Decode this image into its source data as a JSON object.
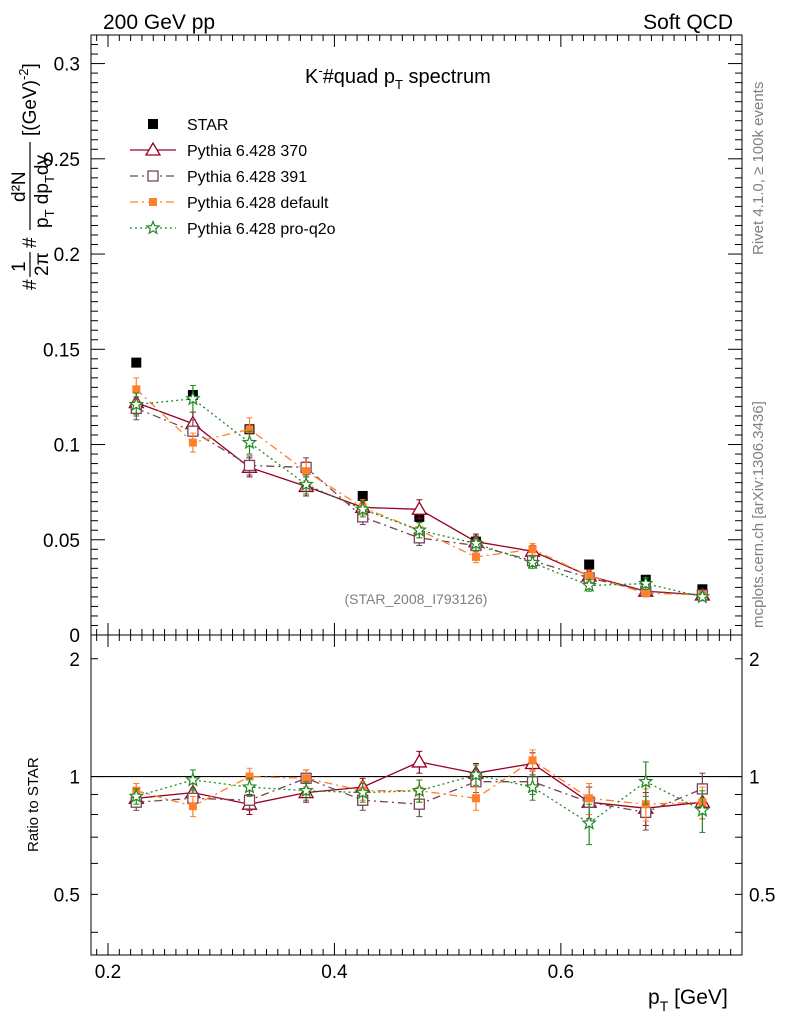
{
  "header": {
    "left": "200 GeV pp",
    "right": "Soft QCD"
  },
  "side": {
    "rivet": "Rivet 4.1.0, ≥ 100k events",
    "mcplots": "mcplots.cern.ch [arXiv:1306.3436]"
  },
  "watermark": "(STAR_2008_I793126)",
  "chart_data": {
    "type": "scatter",
    "title": "K⁻#quad p_T spectrum",
    "title_main": "K",
    "title_sup": "-",
    "title_mid": "#quad p",
    "title_sub": "T",
    "title_tail": " spectrum",
    "xlabel": "p_T [GeV]",
    "xlabel_main": "p",
    "xlabel_sub": "T",
    "xlabel_tail": " [GeV]",
    "ylabel": "#frac{1}{2π} #frac{d²N}{p_T dp_T dy} [(GeV)⁻²]",
    "ylabel_parts": {
      "hash1": "#",
      "one": "1",
      "twopi": "2π",
      "hash2": "#",
      "d2n": "d²N",
      "pt": "p",
      "pt_sub": "T",
      "dp": " dp",
      "dp_sub": "T",
      "dy": "dy",
      "units": "[(GeV)",
      "units_sup": "-2",
      "units_close": "]"
    },
    "ratio_ylabel": "Ratio to STAR",
    "xlim": [
      0.185,
      0.76
    ],
    "ylim": [
      0,
      0.315
    ],
    "ratio_ylim": [
      0.35,
      2.3
    ],
    "x_ticks": [
      "0.2",
      "0.4",
      "0.6"
    ],
    "y_ticks": [
      "0",
      "0.05",
      "0.1",
      "0.15",
      "0.2",
      "0.25",
      "0.3"
    ],
    "ratio_ticks": [
      "0.5",
      "1",
      "2"
    ],
    "x": [
      0.225,
      0.275,
      0.325,
      0.375,
      0.425,
      0.475,
      0.525,
      0.575,
      0.625,
      0.675,
      0.725
    ],
    "series": [
      {
        "name": "STAR",
        "color": "#000000",
        "marker": "square-filled",
        "values": [
          0.143,
          0.126,
          0.108,
          0.088,
          0.073,
          0.062,
          0.049,
          0.041,
          0.037,
          0.029,
          0.024
        ],
        "errors": [
          0.002,
          0.002,
          0.002,
          0.001,
          0.001,
          0.001,
          0.001,
          0.001,
          0.001,
          0.001,
          0.001
        ],
        "ratio": [
          1,
          1,
          1,
          1,
          1,
          1,
          1,
          1,
          1,
          1,
          1
        ]
      },
      {
        "name": "Pythia 6.428 370",
        "color": "#990022",
        "marker": "triangle-open",
        "dash": "",
        "values": [
          0.122,
          0.111,
          0.088,
          0.078,
          0.067,
          0.066,
          0.049,
          0.044,
          0.031,
          0.023,
          0.021
        ],
        "errors": [
          0.006,
          0.006,
          0.005,
          0.005,
          0.004,
          0.005,
          0.004,
          0.003,
          0.003,
          0.002,
          0.002
        ],
        "ratio": [
          0.88,
          0.91,
          0.85,
          0.91,
          0.94,
          1.09,
          1.02,
          1.08,
          0.86,
          0.83,
          0.86
        ],
        "ratio_err": [
          0.04,
          0.05,
          0.05,
          0.05,
          0.05,
          0.07,
          0.06,
          0.07,
          0.08,
          0.08,
          0.08
        ]
      },
      {
        "name": "Pythia 6.428 391",
        "color": "#774455",
        "marker": "square-open",
        "dash": "8,4,2,4",
        "values": [
          0.119,
          0.107,
          0.089,
          0.088,
          0.062,
          0.051,
          0.047,
          0.039,
          0.03,
          0.023,
          0.021
        ],
        "errors": [
          0.006,
          0.006,
          0.005,
          0.005,
          0.004,
          0.004,
          0.004,
          0.003,
          0.003,
          0.002,
          0.002
        ],
        "ratio": [
          0.86,
          0.88,
          0.87,
          0.99,
          0.87,
          0.85,
          0.97,
          0.97,
          0.86,
          0.81,
          0.93
        ],
        "ratio_err": [
          0.04,
          0.05,
          0.05,
          0.05,
          0.05,
          0.06,
          0.06,
          0.07,
          0.08,
          0.08,
          0.09
        ]
      },
      {
        "name": "Pythia 6.428 default",
        "color": "#ff7f2a",
        "marker": "square-filled-small",
        "dash": "8,4,2,4",
        "values": [
          0.129,
          0.101,
          0.108,
          0.086,
          0.067,
          0.055,
          0.041,
          0.045,
          0.031,
          0.022,
          0.021
        ],
        "errors": [
          0.006,
          0.005,
          0.006,
          0.005,
          0.004,
          0.004,
          0.003,
          0.003,
          0.003,
          0.002,
          0.002
        ],
        "ratio": [
          0.92,
          0.84,
          1.0,
          0.99,
          0.92,
          0.92,
          0.88,
          1.1,
          0.88,
          0.85,
          0.86
        ],
        "ratio_err": [
          0.04,
          0.05,
          0.05,
          0.05,
          0.05,
          0.06,
          0.06,
          0.07,
          0.08,
          0.08,
          0.08
        ]
      },
      {
        "name": "Pythia 6.428 pro-q2o",
        "color": "#228822",
        "marker": "star-open",
        "dash": "2,3",
        "values": [
          0.121,
          0.124,
          0.101,
          0.079,
          0.066,
          0.055,
          0.048,
          0.038,
          0.026,
          0.027,
          0.02
        ],
        "errors": [
          0.006,
          0.007,
          0.006,
          0.005,
          0.004,
          0.004,
          0.004,
          0.003,
          0.003,
          0.003,
          0.002
        ],
        "ratio": [
          0.89,
          0.98,
          0.94,
          0.92,
          0.91,
          0.92,
          1.01,
          0.94,
          0.76,
          0.97,
          0.82
        ],
        "ratio_err": [
          0.04,
          0.06,
          0.05,
          0.05,
          0.05,
          0.06,
          0.06,
          0.07,
          0.09,
          0.12,
          0.1
        ]
      }
    ]
  }
}
